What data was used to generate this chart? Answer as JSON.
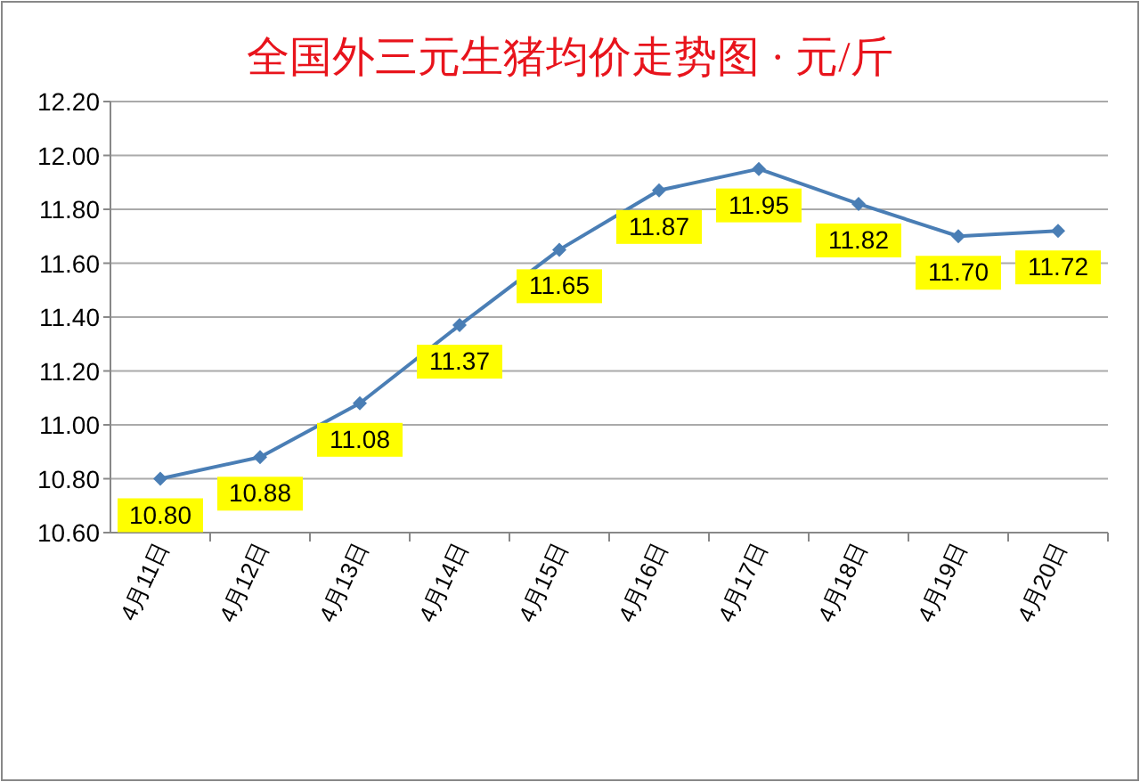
{
  "chart_data": {
    "type": "line",
    "title": "全国外三元生猪均价走势图 · 元/斤",
    "categories": [
      "4月11日",
      "4月12日",
      "4月13日",
      "4月14日",
      "4月15日",
      "4月16日",
      "4月17日",
      "4月18日",
      "4月19日",
      "4月20日"
    ],
    "values": [
      10.8,
      10.88,
      11.08,
      11.37,
      11.65,
      11.87,
      11.95,
      11.82,
      11.7,
      11.72
    ],
    "value_labels": [
      "10.80",
      "10.88",
      "11.08",
      "11.37",
      "11.65",
      "11.87",
      "11.95",
      "11.82",
      "11.70",
      "11.72"
    ],
    "color": "#4a7eb5",
    "ylim": [
      10.6,
      12.2
    ],
    "yticks": [
      {
        "value": 10.6,
        "label": "10.60"
      },
      {
        "value": 10.8,
        "label": "10.80"
      },
      {
        "value": 11.0,
        "label": "11.00"
      },
      {
        "value": 11.2,
        "label": "11.20"
      },
      {
        "value": 11.4,
        "label": "11.40"
      },
      {
        "value": 11.6,
        "label": "11.60"
      },
      {
        "value": 11.8,
        "label": "11.80"
      },
      {
        "value": 12.0,
        "label": "12.00"
      },
      {
        "value": 12.2,
        "label": "12.20"
      }
    ],
    "grid": "y",
    "marker": "diamond"
  }
}
